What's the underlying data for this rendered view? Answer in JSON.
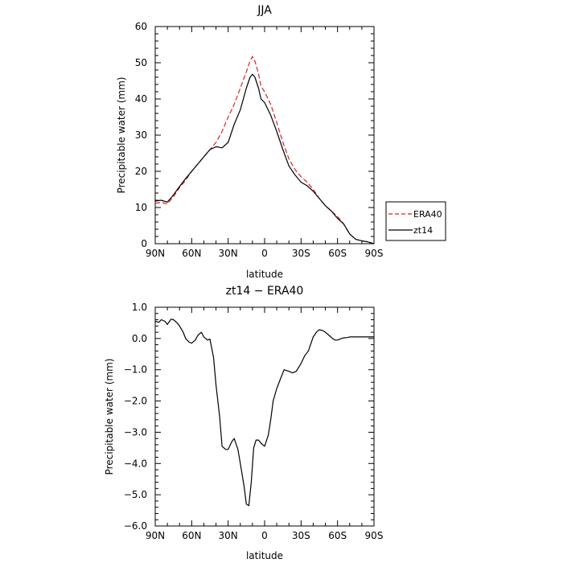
{
  "chart_data": [
    {
      "type": "line",
      "title": "JJA",
      "xlabel": "latitude",
      "ylabel": "Precipitable water (mm)",
      "x_unit": "degrees latitude (90N = 90, 0 = 0, 90S = -90)",
      "xlim": [
        90,
        -90
      ],
      "ylim": [
        0,
        60
      ],
      "x_ticks": [
        90,
        60,
        30,
        0,
        -30,
        -60,
        -90
      ],
      "x_tick_labels": [
        "90N",
        "60N",
        "30N",
        "0",
        "30S",
        "60S",
        "90S"
      ],
      "y_ticks": [
        0,
        10,
        20,
        30,
        40,
        50,
        60
      ],
      "y_tick_labels": [
        "0",
        "10",
        "20",
        "30",
        "40",
        "50",
        "60"
      ],
      "grid": false,
      "legend": {
        "placement": "right-outside",
        "entries": [
          "ERA40",
          "zt14"
        ]
      },
      "series": [
        {
          "name": "ERA40",
          "color": "#e02020",
          "dash": "dashed",
          "x": [
            90,
            85,
            80,
            75,
            70,
            65,
            60,
            55,
            50,
            45,
            40,
            35,
            30,
            25,
            20,
            15,
            12,
            10,
            8,
            5,
            3,
            0,
            -5,
            -10,
            -15,
            -20,
            -25,
            -30,
            -35,
            -40,
            -45,
            -50,
            -55,
            -60,
            -65,
            -70,
            -75,
            -80,
            -85,
            -90
          ],
          "y": [
            11.2,
            11.4,
            11.0,
            13.0,
            15.5,
            17.5,
            20.0,
            22.0,
            24.0,
            26.0,
            28.0,
            31.0,
            35.0,
            38.5,
            43.0,
            47.5,
            50.5,
            51.7,
            50.5,
            47.0,
            43.5,
            42.0,
            38.5,
            33.5,
            28.0,
            23.5,
            20.5,
            18.5,
            17.0,
            15.0,
            12.5,
            10.5,
            9.0,
            7.5,
            5.5,
            2.7,
            1.2,
            0.8,
            0.5,
            0.0
          ]
        },
        {
          "name": "zt14",
          "color": "#000000",
          "dash": "solid",
          "x": [
            90,
            85,
            80,
            75,
            70,
            65,
            60,
            55,
            50,
            45,
            40,
            35,
            30,
            25,
            20,
            15,
            12,
            10,
            8,
            5,
            3,
            0,
            -5,
            -10,
            -15,
            -20,
            -25,
            -30,
            -35,
            -40,
            -45,
            -50,
            -55,
            -60,
            -65,
            -70,
            -75,
            -80,
            -85,
            -90
          ],
          "y": [
            11.8,
            12.0,
            11.5,
            13.5,
            15.8,
            18.0,
            20.0,
            22.0,
            24.0,
            26.0,
            26.8,
            26.5,
            28.0,
            33.0,
            37.0,
            43.0,
            46.0,
            46.8,
            46.0,
            43.0,
            40.0,
            39.0,
            35.5,
            31.0,
            26.0,
            21.5,
            19.0,
            17.0,
            16.0,
            14.5,
            12.5,
            10.5,
            9.0,
            7.0,
            5.5,
            2.7,
            1.2,
            0.8,
            0.5,
            0.0
          ]
        }
      ]
    },
    {
      "type": "line",
      "title": "zt14 − ERA40",
      "xlabel": "latitude",
      "ylabel": "Precipitable water (mm)",
      "x_unit": "degrees latitude (90N = 90, 0 = 0, 90S = -90)",
      "xlim": [
        90,
        -90
      ],
      "ylim": [
        -6.0,
        1.0
      ],
      "x_ticks": [
        90,
        60,
        30,
        0,
        -30,
        -60,
        -90
      ],
      "x_tick_labels": [
        "90N",
        "60N",
        "30N",
        "0",
        "30S",
        "60S",
        "90S"
      ],
      "y_ticks": [
        1.0,
        0.0,
        -1.0,
        -2.0,
        -3.0,
        -4.0,
        -5.0,
        -6.0
      ],
      "y_tick_labels": [
        "1.0",
        "0.0",
        "−1.0",
        "−2.0",
        "−3.0",
        "−4.0",
        "−5.0",
        "−6.0"
      ],
      "grid": false,
      "series": [
        {
          "color": "#000000",
          "dash": "solid",
          "x": [
            90,
            87,
            85,
            82,
            80,
            77,
            75,
            72,
            70,
            67,
            65,
            62,
            60,
            57,
            55,
            52,
            50,
            47,
            45,
            42,
            40,
            37,
            35,
            32,
            30,
            27,
            25,
            22,
            20,
            17,
            15,
            13,
            11,
            9,
            7,
            5,
            3,
            0,
            -3,
            -5,
            -7,
            -10,
            -13,
            -16,
            -20,
            -23,
            -26,
            -30,
            -33,
            -36,
            -40,
            -43,
            -45,
            -48,
            -50,
            -53,
            -56,
            -58,
            -60,
            -63,
            -65,
            -68,
            -70,
            -72,
            -75,
            -80,
            -85,
            -90
          ],
          "y": [
            0.55,
            0.52,
            0.6,
            0.55,
            0.45,
            0.62,
            0.6,
            0.5,
            0.4,
            0.2,
            0.0,
            -0.12,
            -0.15,
            -0.05,
            0.1,
            0.2,
            0.05,
            -0.05,
            -0.02,
            -0.6,
            -1.5,
            -2.5,
            -3.45,
            -3.55,
            -3.55,
            -3.3,
            -3.2,
            -3.55,
            -4.0,
            -4.7,
            -5.3,
            -5.35,
            -4.6,
            -3.5,
            -3.25,
            -3.25,
            -3.35,
            -3.45,
            -3.1,
            -2.6,
            -2.0,
            -1.6,
            -1.3,
            -1.0,
            -1.05,
            -1.1,
            -1.05,
            -0.8,
            -0.55,
            -0.4,
            0.05,
            0.22,
            0.28,
            0.25,
            0.2,
            0.1,
            0.0,
            -0.05,
            -0.05,
            0.0,
            0.02,
            0.03,
            0.05,
            0.05,
            0.05,
            0.05,
            0.05,
            0.05
          ]
        }
      ]
    }
  ]
}
